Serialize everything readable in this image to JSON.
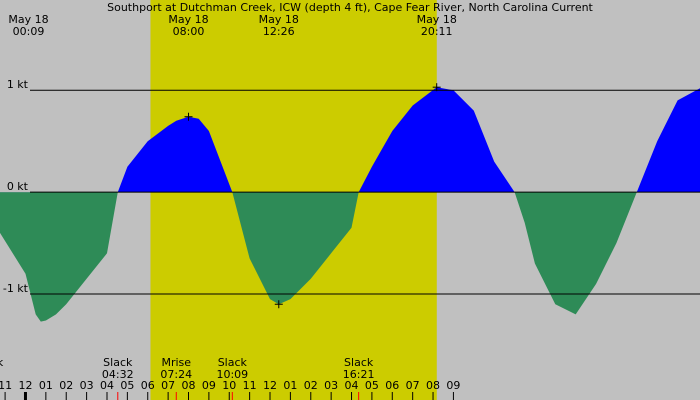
{
  "chart_data": {
    "type": "area",
    "title": "Southport at Dutchman Creek, ICW (depth 4 ft), Cape Fear River, North Carolina Current",
    "xlabel": "",
    "ylabel": "",
    "x_unit": "hour of day (May 18); values > 24 are May 19",
    "xlim": [
      -1.25,
      33.1
    ],
    "ylim": [
      -1.5,
      1.65
    ],
    "y_ticks": [
      {
        "value": 1,
        "label": "1 kt"
      },
      {
        "value": 0,
        "label": "0 kt"
      },
      {
        "value": -1,
        "label": "-1 kt"
      }
    ],
    "daylight": {
      "start": "06:08",
      "end": "20:11",
      "color": "#cccc00"
    },
    "night_color": "#c0c0c0",
    "colors": {
      "flood": "#0000ff",
      "ebb": "#2e8b57"
    },
    "series": [
      {
        "x": [
          -1.25,
          0.0,
          0.5,
          0.75,
          1.0,
          1.5,
          2.0,
          3.0,
          4.0,
          4.53,
          5.0,
          6.0,
          7.0,
          7.4,
          8.0,
          8.5,
          9.0,
          10.15,
          11.0,
          12.0,
          12.43,
          13.0,
          14.0,
          15.0,
          16.0,
          16.35,
          17.0,
          18.0,
          19.0,
          20.18,
          21.0,
          22.0,
          23.0,
          24.0,
          24.5,
          25.0,
          26.0,
          27.0,
          28.0,
          29.0,
          30.0,
          31.0,
          32.0,
          33.1
        ],
        "values": [
          -0.4,
          -0.8,
          -1.2,
          -1.27,
          -1.26,
          -1.2,
          -1.1,
          -0.85,
          -0.6,
          0.0,
          0.25,
          0.5,
          0.65,
          0.7,
          0.74,
          0.72,
          0.6,
          0.0,
          -0.65,
          -1.05,
          -1.1,
          -1.05,
          -0.85,
          -0.6,
          -0.35,
          0.0,
          0.25,
          0.6,
          0.85,
          1.03,
          1.0,
          0.8,
          0.3,
          0.0,
          -0.3,
          -0.7,
          -1.1,
          -1.2,
          -0.9,
          -0.5,
          0.0,
          0.5,
          0.9,
          1.02
        ]
      }
    ],
    "top_labels": [
      {
        "date": "May 18",
        "time": "00:09",
        "hour": 0.15
      },
      {
        "date": "May 18",
        "time": "08:00",
        "hour": 8.0
      },
      {
        "date": "May 18",
        "time": "12:26",
        "hour": 12.43
      },
      {
        "date": "May 18",
        "time": "20:11",
        "hour": 20.18
      }
    ],
    "events": [
      {
        "label": "k",
        "time": "",
        "hour": -1.25
      },
      {
        "label": "Slack",
        "time": "04:32",
        "hour": 4.53
      },
      {
        "label": "Mrise",
        "time": "07:24",
        "hour": 7.4
      },
      {
        "label": "Slack",
        "time": "10:09",
        "hour": 10.15
      },
      {
        "label": "Slack",
        "time": "16:21",
        "hour": 16.35
      }
    ],
    "hour_ticks": [
      {
        "label": "11",
        "hour": -1
      },
      {
        "label": "12",
        "hour": 0
      },
      {
        "label": "01",
        "hour": 1
      },
      {
        "label": "02",
        "hour": 2
      },
      {
        "label": "03",
        "hour": 3
      },
      {
        "label": "04",
        "hour": 4
      },
      {
        "label": "05",
        "hour": 5
      },
      {
        "label": "06",
        "hour": 6
      },
      {
        "label": "07",
        "hour": 7
      },
      {
        "label": "08",
        "hour": 8
      },
      {
        "label": "09",
        "hour": 9
      },
      {
        "label": "10",
        "hour": 10
      },
      {
        "label": "11",
        "hour": 11
      },
      {
        "label": "12",
        "hour": 12
      },
      {
        "label": "01",
        "hour": 13
      },
      {
        "label": "02",
        "hour": 14
      },
      {
        "label": "03",
        "hour": 15
      },
      {
        "label": "04",
        "hour": 16
      },
      {
        "label": "05",
        "hour": 17
      },
      {
        "label": "06",
        "hour": 18
      },
      {
        "label": "07",
        "hour": 19
      },
      {
        "label": "08",
        "hour": 20
      },
      {
        "label": "09",
        "hour": 21
      }
    ]
  }
}
